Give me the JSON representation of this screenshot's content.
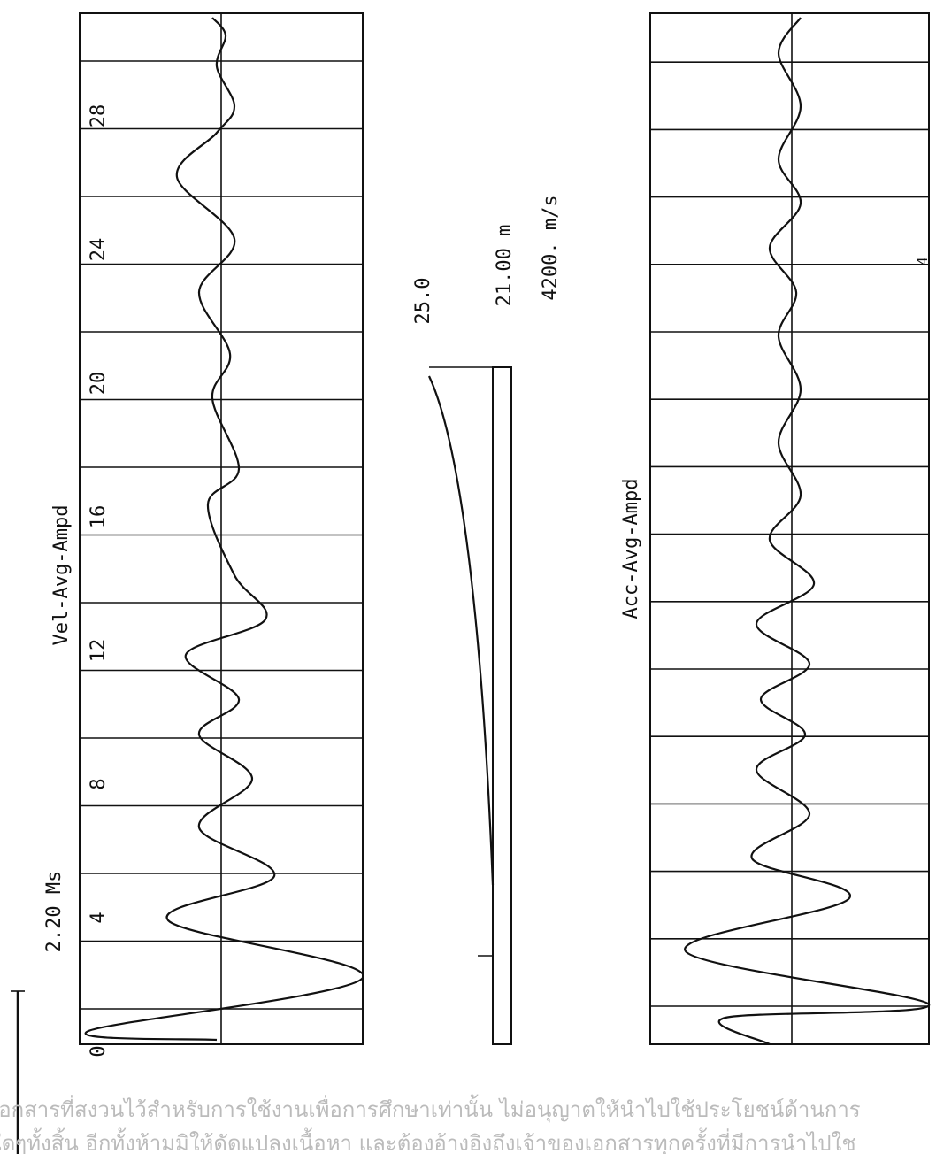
{
  "header": {
    "scale": "2.20 Ms",
    "page": "4"
  },
  "panels": [
    {
      "title": "Vel-Avg-Ampd",
      "ticks": [
        "0",
        "4",
        "8",
        "12",
        "16",
        "20",
        "24",
        "28"
      ]
    },
    {
      "title": "Acc-Avg-Ampd"
    }
  ],
  "pile": {
    "top": "25.0",
    "length": "21.00 m",
    "wave_speed": "4200. m/s"
  },
  "watermark": [
    "เอกสารที่สงวนไว้สำหรับการใช้งานเพื่อการศึกษาเท่านั้น ไม่อนุญาตให้นำไปใช้ประโยชน์ด้านการ",
    "ใดๆทั้งสิ้น อีกทั้งห้ามมิให้ดัดแปลงเนื้อหา และต้องอ้างอิงถึงเจ้าของเอกสารทุกครั้งที่มีการนำไปใช"
  ]
}
